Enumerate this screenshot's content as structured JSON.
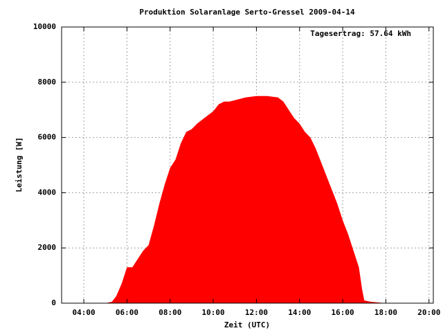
{
  "chart_data": {
    "type": "area",
    "title": "Produktion Solaranlage Serto-Gressel 2009-04-14",
    "annotation": "Tagesertrag: 57.64 kWh",
    "x_label": "Zeit (UTC)",
    "y_label": "Leistung [W]",
    "color": "#ff0000",
    "grid": true,
    "xlim": [
      2.97,
      20.2
    ],
    "ylim": [
      0,
      10000
    ],
    "xticks": [
      {
        "value": 4,
        "label": "04:00"
      },
      {
        "value": 6,
        "label": "06:00"
      },
      {
        "value": 8,
        "label": "08:00"
      },
      {
        "value": 10,
        "label": "10:00"
      },
      {
        "value": 12,
        "label": "12:00"
      },
      {
        "value": 14,
        "label": "14:00"
      },
      {
        "value": 16,
        "label": "16:00"
      },
      {
        "value": 18,
        "label": "18:00"
      },
      {
        "value": 20,
        "label": "20:00"
      }
    ],
    "yticks": [
      0,
      2000,
      4000,
      6000,
      8000,
      10000
    ],
    "x": [
      5.0,
      5.3,
      5.5,
      5.75,
      6.0,
      6.25,
      6.5,
      6.75,
      7.0,
      7.25,
      7.5,
      7.75,
      8.0,
      8.25,
      8.5,
      8.75,
      9.0,
      9.25,
      9.5,
      9.75,
      10.0,
      10.25,
      10.5,
      10.75,
      11.0,
      11.5,
      12.0,
      12.5,
      13.0,
      13.25,
      13.5,
      13.75,
      14.0,
      14.25,
      14.5,
      14.75,
      15.0,
      15.25,
      15.5,
      15.75,
      16.0,
      16.25,
      16.5,
      16.75,
      16.9,
      17.0,
      17.3,
      17.75,
      17.9
    ],
    "values": [
      0,
      50,
      250,
      700,
      1300,
      1300,
      1600,
      1900,
      2100,
      2800,
      3600,
      4300,
      4900,
      5200,
      5800,
      6200,
      6300,
      6500,
      6650,
      6800,
      6950,
      7200,
      7300,
      7300,
      7350,
      7450,
      7500,
      7500,
      7450,
      7300,
      7000,
      6700,
      6500,
      6200,
      6000,
      5600,
      5100,
      4600,
      4100,
      3600,
      3000,
      2500,
      1900,
      1300,
      500,
      100,
      50,
      20,
      0
    ]
  }
}
